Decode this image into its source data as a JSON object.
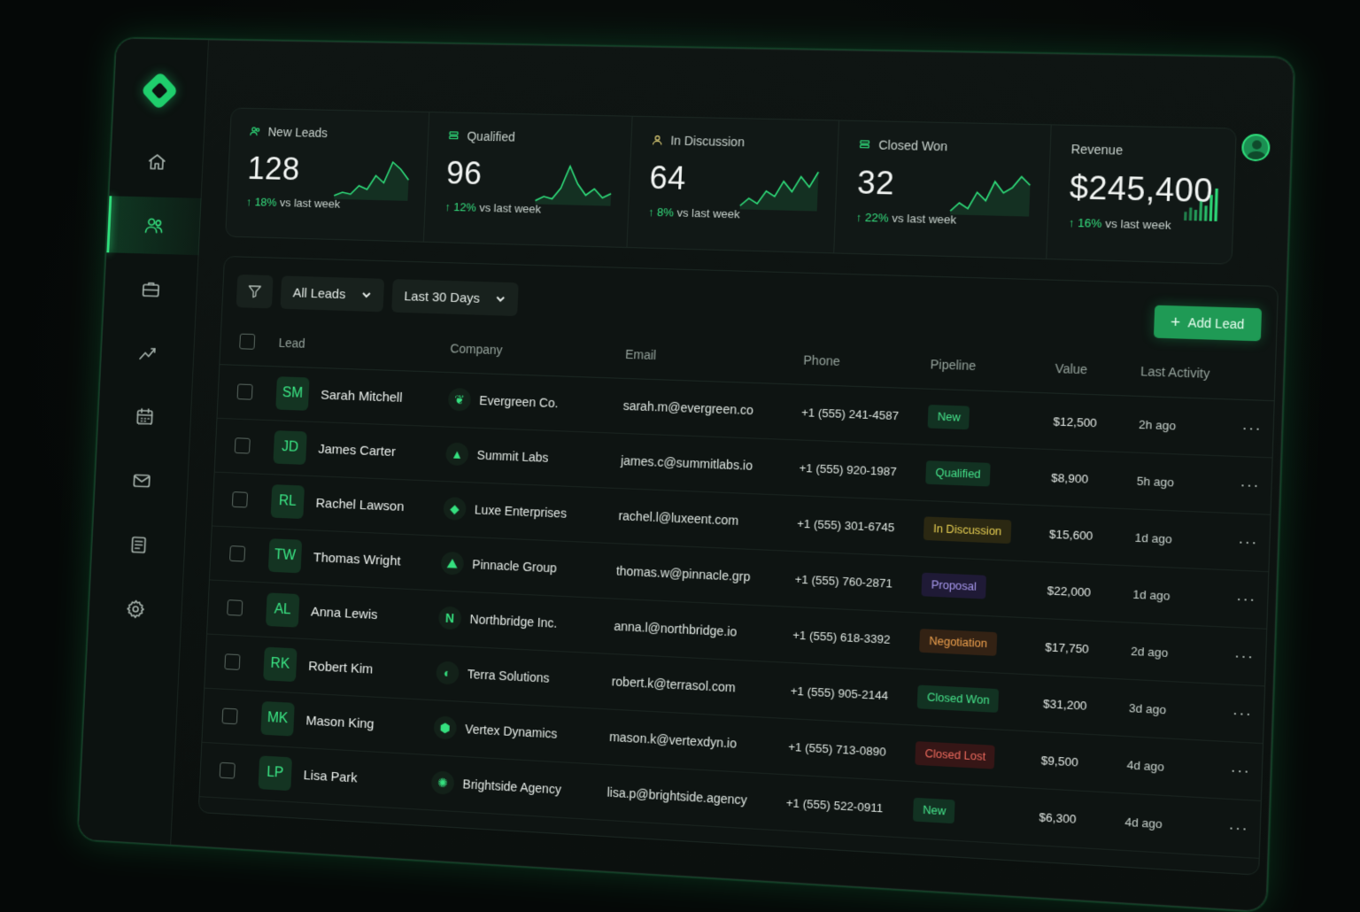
{
  "nav": {
    "items": [
      {
        "icon": "home-icon",
        "active": false
      },
      {
        "icon": "users-icon",
        "active": true
      },
      {
        "icon": "briefcase-icon",
        "active": false
      },
      {
        "icon": "trend-chart-icon",
        "active": false
      },
      {
        "icon": "calendar-icon",
        "active": false
      },
      {
        "icon": "mail-icon",
        "active": false
      },
      {
        "icon": "document-icon",
        "active": false
      },
      {
        "icon": "settings-gear-icon",
        "active": false
      }
    ]
  },
  "stats": [
    {
      "label": "New Leads",
      "value": "128",
      "delta": "18%",
      "delta_suffix": " vs last week",
      "icon": "users-icon",
      "spark": [
        8,
        10,
        9,
        14,
        12,
        20,
        16,
        28,
        24,
        18
      ]
    },
    {
      "label": "Qualified",
      "value": "96",
      "delta": "12%",
      "delta_suffix": " vs last week",
      "icon": "stack-icon",
      "spark": [
        6,
        8,
        7,
        12,
        22,
        14,
        9,
        12,
        8,
        10
      ]
    },
    {
      "label": "In Discussion",
      "value": "64",
      "delta": "8%",
      "delta_suffix": " vs last week",
      "icon": "user-icon",
      "spark": [
        6,
        9,
        7,
        12,
        10,
        16,
        12,
        18,
        14,
        20
      ]
    },
    {
      "label": "Closed Won",
      "value": "32",
      "delta": "22%",
      "delta_suffix": " vs last week",
      "icon": "stack-icon",
      "spark": [
        5,
        8,
        6,
        12,
        9,
        16,
        12,
        14,
        18,
        15
      ]
    },
    {
      "label": "Revenue",
      "value": "$245,400",
      "delta": "16%",
      "delta_suffix": " vs last week",
      "bars": [
        8,
        12,
        10,
        18,
        14,
        24,
        30
      ]
    }
  ],
  "toolbar": {
    "filter_select": "All Leads",
    "date_select": "Last 30 Days",
    "add_label": "Add Lead"
  },
  "table": {
    "headers": [
      "Lead",
      "Company",
      "Email",
      "Phone",
      "Pipeline",
      "Value",
      "Last Activity"
    ],
    "rows": [
      {
        "initials": "SM",
        "name": "Sarah Mitchell",
        "company": "Evergreen Co.",
        "company_icon": "leaf-icon",
        "email": "sarah.m@evergreen.co",
        "phone": "+1 (555) 241-4587",
        "pipeline": "New",
        "pipeline_style": "b-new",
        "value": "$12,500",
        "activity": "2h ago"
      },
      {
        "initials": "JD",
        "name": "James Carter",
        "company": "Summit Labs",
        "company_icon": "triangle-icon",
        "email": "james.c@summitlabs.io",
        "phone": "+1 (555) 920-1987",
        "pipeline": "Qualified",
        "pipeline_style": "b-qual",
        "value": "$8,900",
        "activity": "5h ago"
      },
      {
        "initials": "RL",
        "name": "Rachel Lawson",
        "company": "Luxe Enterprises",
        "company_icon": "diamond-icon",
        "email": "rachel.l@luxeent.com",
        "phone": "+1 (555) 301-6745",
        "pipeline": "In Discussion",
        "pipeline_style": "b-disc",
        "value": "$15,600",
        "activity": "1d ago"
      },
      {
        "initials": "TW",
        "name": "Thomas Wright",
        "company": "Pinnacle Group",
        "company_icon": "mountain-icon",
        "email": "thomas.w@pinnacle.grp",
        "phone": "+1 (555) 760-2871",
        "pipeline": "Proposal",
        "pipeline_style": "b-prop",
        "value": "$22,000",
        "activity": "1d ago"
      },
      {
        "initials": "AL",
        "name": "Anna Lewis",
        "company": "Northbridge Inc.",
        "company_icon": "n-letter-icon",
        "email": "anna.l@northbridge.io",
        "phone": "+1 (555) 618-3392",
        "pipeline": "Negotiation",
        "pipeline_style": "b-neg",
        "value": "$17,750",
        "activity": "2d ago"
      },
      {
        "initials": "RK",
        "name": "Robert Kim",
        "company": "Terra Solutions",
        "company_icon": "globe-leaf-icon",
        "email": "robert.k@terrasol.com",
        "phone": "+1 (555) 905-2144",
        "pipeline": "Closed Won",
        "pipeline_style": "b-won",
        "value": "$31,200",
        "activity": "3d ago"
      },
      {
        "initials": "MK",
        "name": "Mason King",
        "company": "Vertex Dynamics",
        "company_icon": "hexagon-icon",
        "email": "mason.k@vertexdyn.io",
        "phone": "+1 (555) 713-0890",
        "pipeline": "Closed Lost",
        "pipeline_style": "b-lost",
        "value": "$9,500",
        "activity": "4d ago"
      },
      {
        "initials": "LP",
        "name": "Lisa Park",
        "company": "Brightside Agency",
        "company_icon": "sun-icon",
        "email": "lisa.p@brightside.agency",
        "phone": "+1 (555) 522-0911",
        "pipeline": "New",
        "pipeline_style": "b-new",
        "value": "$6,300",
        "activity": "4d ago"
      }
    ]
  },
  "colors": {
    "accent": "#2fe07c",
    "background": "#0b100e"
  }
}
